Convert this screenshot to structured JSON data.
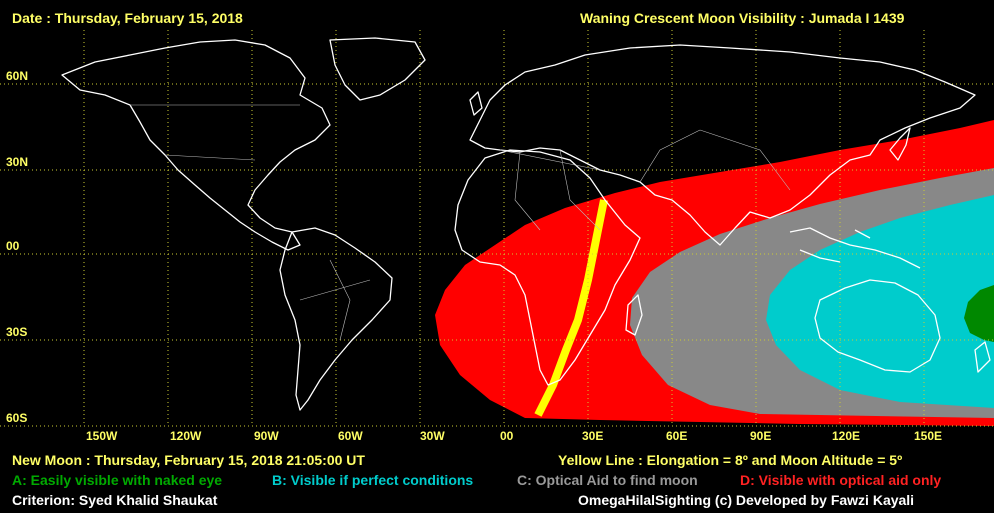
{
  "header": {
    "date": "Date : Thursday, February 15, 2018",
    "title": "Waning Crescent Moon Visibility : Jumada I 1439"
  },
  "map": {
    "lat_labels": [
      "60N",
      "30N",
      "00",
      "30S",
      "60S"
    ],
    "lon_labels": [
      "150W",
      "120W",
      "90W",
      "60W",
      "30W",
      "00",
      "30E",
      "60E",
      "90E",
      "120E",
      "150E"
    ],
    "zone_colors": {
      "A": "#008800",
      "B": "#00cccc",
      "C": "#888888",
      "D": "#ff0000",
      "yellow_line": "#ffff00"
    }
  },
  "footer": {
    "new_moon": "New Moon : Thursday, February 15, 2018  21:05:00  UT",
    "yellow_line": "Yellow Line : Elongation = 8º and Moon Altitude = 5º",
    "legend_a": "A: Easily visible with naked eye",
    "legend_b": "B: Visible if perfect conditions",
    "legend_c": "C: Optical Aid to find moon",
    "legend_d": "D: Visible with optical aid only",
    "criterion": "Criterion: Syed Khalid Shaukat",
    "credit": "OmegaHilalSighting  (c)  Developed by Fawzi Kayali"
  }
}
